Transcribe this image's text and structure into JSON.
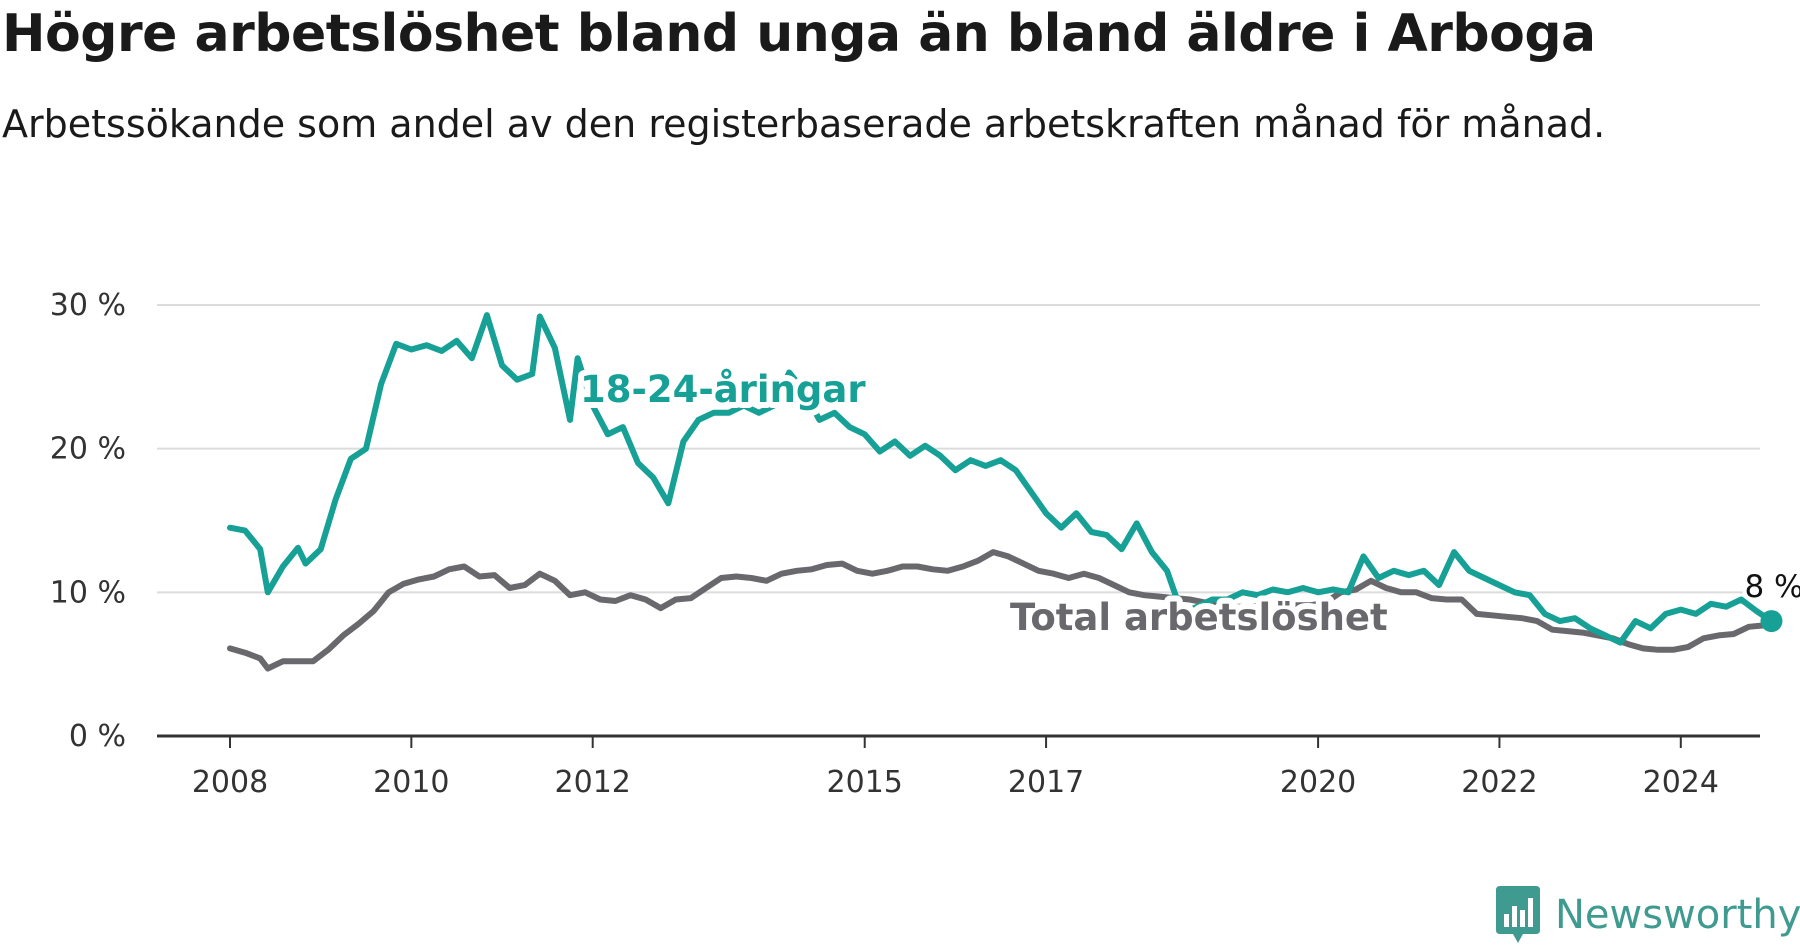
{
  "title": "Högre arbetslöshet bland unga än bland äldre i Arboga",
  "subtitle": "Arbetssökande som andel av den registerbaserade arbetskraften månad för månad.",
  "brand": {
    "name": "Newsworthy",
    "icon": "newsworthy-logo-icon",
    "color": "#3f9a8f"
  },
  "chart_data": {
    "type": "line",
    "title": "Högre arbetslöshet bland unga än bland äldre i Arboga",
    "subtitle": "Arbetssökande som andel av den registerbaserade arbetskraften månad för månad.",
    "xlabel": "",
    "ylabel": "",
    "x_ticks": [
      "2008",
      "2010",
      "2012",
      "2015",
      "2017",
      "2020",
      "2022",
      "2024"
    ],
    "y_ticks": [
      "0 %",
      "10 %",
      "20 %",
      "30 %"
    ],
    "ylim": [
      0,
      30
    ],
    "grid": true,
    "end_label": "8 %",
    "series": [
      {
        "name": "18-24-åringar",
        "color": "#16a096",
        "points": [
          [
            "2008-01",
            14.5
          ],
          [
            "2008-03",
            14.3
          ],
          [
            "2008-05",
            13.0
          ],
          [
            "2008-06",
            10.0
          ],
          [
            "2008-08",
            11.8
          ],
          [
            "2008-10",
            13.1
          ],
          [
            "2008-11",
            12.0
          ],
          [
            "2009-01",
            13.0
          ],
          [
            "2009-03",
            16.5
          ],
          [
            "2009-05",
            19.3
          ],
          [
            "2009-07",
            20.0
          ],
          [
            "2009-09",
            24.5
          ],
          [
            "2009-11",
            27.3
          ],
          [
            "2010-01",
            26.9
          ],
          [
            "2010-03",
            27.2
          ],
          [
            "2010-05",
            26.8
          ],
          [
            "2010-07",
            27.5
          ],
          [
            "2010-09",
            26.3
          ],
          [
            "2010-11",
            29.3
          ],
          [
            "2011-01",
            25.8
          ],
          [
            "2011-03",
            24.8
          ],
          [
            "2011-05",
            25.2
          ],
          [
            "2011-06",
            29.2
          ],
          [
            "2011-08",
            27.0
          ],
          [
            "2011-10",
            22.0
          ],
          [
            "2011-11",
            26.3
          ],
          [
            "2012-01",
            23.0
          ],
          [
            "2012-03",
            21.0
          ],
          [
            "2012-05",
            21.5
          ],
          [
            "2012-07",
            19.0
          ],
          [
            "2012-09",
            18.0
          ],
          [
            "2012-11",
            16.2
          ],
          [
            "2013-01",
            20.5
          ],
          [
            "2013-03",
            22.0
          ],
          [
            "2013-05",
            22.5
          ],
          [
            "2013-07",
            22.5
          ],
          [
            "2013-09",
            23.0
          ],
          [
            "2013-11",
            22.5
          ],
          [
            "2014-01",
            23.0
          ],
          [
            "2014-03",
            25.3
          ],
          [
            "2014-05",
            24.0
          ],
          [
            "2014-07",
            22.0
          ],
          [
            "2014-09",
            22.5
          ],
          [
            "2014-11",
            21.5
          ],
          [
            "2015-01",
            21.0
          ],
          [
            "2015-03",
            19.8
          ],
          [
            "2015-05",
            20.5
          ],
          [
            "2015-07",
            19.5
          ],
          [
            "2015-09",
            20.2
          ],
          [
            "2015-11",
            19.5
          ],
          [
            "2016-01",
            18.5
          ],
          [
            "2016-03",
            19.2
          ],
          [
            "2016-05",
            18.8
          ],
          [
            "2016-07",
            19.2
          ],
          [
            "2016-09",
            18.5
          ],
          [
            "2016-11",
            17.0
          ],
          [
            "2017-01",
            15.5
          ],
          [
            "2017-03",
            14.5
          ],
          [
            "2017-05",
            15.5
          ],
          [
            "2017-07",
            14.2
          ],
          [
            "2017-09",
            14.0
          ],
          [
            "2017-11",
            13.0
          ],
          [
            "2018-01",
            14.8
          ],
          [
            "2018-03",
            12.8
          ],
          [
            "2018-05",
            11.5
          ],
          [
            "2018-07",
            8.5
          ],
          [
            "2018-09",
            9.0
          ],
          [
            "2018-11",
            9.5
          ],
          [
            "2019-01",
            9.5
          ],
          [
            "2019-03",
            10.0
          ],
          [
            "2019-05",
            9.8
          ],
          [
            "2019-07",
            10.2
          ],
          [
            "2019-09",
            10.0
          ],
          [
            "2019-11",
            10.3
          ],
          [
            "2020-01",
            10.0
          ],
          [
            "2020-03",
            10.2
          ],
          [
            "2020-05",
            10.0
          ],
          [
            "2020-07",
            12.5
          ],
          [
            "2020-09",
            11.0
          ],
          [
            "2020-11",
            11.5
          ],
          [
            "2021-01",
            11.2
          ],
          [
            "2021-03",
            11.5
          ],
          [
            "2021-05",
            10.5
          ],
          [
            "2021-07",
            12.8
          ],
          [
            "2021-09",
            11.5
          ],
          [
            "2021-11",
            11.0
          ],
          [
            "2022-01",
            10.5
          ],
          [
            "2022-03",
            10.0
          ],
          [
            "2022-05",
            9.8
          ],
          [
            "2022-07",
            8.5
          ],
          [
            "2022-09",
            8.0
          ],
          [
            "2022-11",
            8.2
          ],
          [
            "2023-01",
            7.5
          ],
          [
            "2023-03",
            7.0
          ],
          [
            "2023-05",
            6.5
          ],
          [
            "2023-07",
            8.0
          ],
          [
            "2023-09",
            7.5
          ],
          [
            "2023-11",
            8.5
          ],
          [
            "2024-01",
            8.8
          ],
          [
            "2024-03",
            8.5
          ],
          [
            "2024-05",
            9.2
          ],
          [
            "2024-07",
            9.0
          ],
          [
            "2024-09",
            9.5
          ],
          [
            "2024-11",
            8.7
          ],
          [
            "2025-01",
            8.0
          ]
        ]
      },
      {
        "name": "Total arbetslöshet",
        "color": "#69686d",
        "points": [
          [
            "2008-01",
            6.1
          ],
          [
            "2008-03",
            5.8
          ],
          [
            "2008-05",
            5.4
          ],
          [
            "2008-06",
            4.7
          ],
          [
            "2008-08",
            5.2
          ],
          [
            "2008-10",
            5.2
          ],
          [
            "2008-12",
            5.2
          ],
          [
            "2009-02",
            6.0
          ],
          [
            "2009-04",
            7.0
          ],
          [
            "2009-06",
            7.8
          ],
          [
            "2009-08",
            8.7
          ],
          [
            "2009-10",
            10.0
          ],
          [
            "2009-12",
            10.6
          ],
          [
            "2010-02",
            10.9
          ],
          [
            "2010-04",
            11.1
          ],
          [
            "2010-06",
            11.6
          ],
          [
            "2010-08",
            11.8
          ],
          [
            "2010-10",
            11.1
          ],
          [
            "2010-12",
            11.2
          ],
          [
            "2011-02",
            10.3
          ],
          [
            "2011-04",
            10.5
          ],
          [
            "2011-06",
            11.3
          ],
          [
            "2011-08",
            10.8
          ],
          [
            "2011-10",
            9.8
          ],
          [
            "2011-12",
            10.0
          ],
          [
            "2012-02",
            9.5
          ],
          [
            "2012-04",
            9.4
          ],
          [
            "2012-06",
            9.8
          ],
          [
            "2012-08",
            9.5
          ],
          [
            "2012-10",
            8.9
          ],
          [
            "2012-12",
            9.5
          ],
          [
            "2013-02",
            9.6
          ],
          [
            "2013-04",
            10.3
          ],
          [
            "2013-06",
            11.0
          ],
          [
            "2013-08",
            11.1
          ],
          [
            "2013-10",
            11.0
          ],
          [
            "2013-12",
            10.8
          ],
          [
            "2014-02",
            11.3
          ],
          [
            "2014-04",
            11.5
          ],
          [
            "2014-06",
            11.6
          ],
          [
            "2014-08",
            11.9
          ],
          [
            "2014-10",
            12.0
          ],
          [
            "2014-12",
            11.5
          ],
          [
            "2015-02",
            11.3
          ],
          [
            "2015-04",
            11.5
          ],
          [
            "2015-06",
            11.8
          ],
          [
            "2015-08",
            11.8
          ],
          [
            "2015-10",
            11.6
          ],
          [
            "2015-12",
            11.5
          ],
          [
            "2016-02",
            11.8
          ],
          [
            "2016-04",
            12.2
          ],
          [
            "2016-06",
            12.8
          ],
          [
            "2016-08",
            12.5
          ],
          [
            "2016-10",
            12.0
          ],
          [
            "2016-12",
            11.5
          ],
          [
            "2017-02",
            11.3
          ],
          [
            "2017-04",
            11.0
          ],
          [
            "2017-06",
            11.3
          ],
          [
            "2017-08",
            11.0
          ],
          [
            "2017-10",
            10.5
          ],
          [
            "2017-12",
            10.0
          ],
          [
            "2018-02",
            9.8
          ],
          [
            "2018-04",
            9.7
          ],
          [
            "2018-06",
            9.6
          ],
          [
            "2018-08",
            9.5
          ],
          [
            "2018-10",
            9.3
          ],
          [
            "2018-12",
            9.2
          ],
          [
            "2019-02",
            9.0
          ],
          [
            "2019-04",
            9.0
          ],
          [
            "2019-06",
            9.1
          ],
          [
            "2019-08",
            9.0
          ],
          [
            "2019-10",
            9.1
          ],
          [
            "2019-12",
            9.1
          ],
          [
            "2020-02",
            9.3
          ],
          [
            "2020-04",
            10.0
          ],
          [
            "2020-06",
            10.2
          ],
          [
            "2020-08",
            10.8
          ],
          [
            "2020-10",
            10.3
          ],
          [
            "2020-12",
            10.0
          ],
          [
            "2021-02",
            10.0
          ],
          [
            "2021-04",
            9.6
          ],
          [
            "2021-06",
            9.5
          ],
          [
            "2021-08",
            9.5
          ],
          [
            "2021-10",
            8.5
          ],
          [
            "2021-12",
            8.4
          ],
          [
            "2022-02",
            8.3
          ],
          [
            "2022-04",
            8.2
          ],
          [
            "2022-06",
            8.0
          ],
          [
            "2022-08",
            7.4
          ],
          [
            "2022-10",
            7.3
          ],
          [
            "2022-12",
            7.2
          ],
          [
            "2023-02",
            7.0
          ],
          [
            "2023-04",
            6.8
          ],
          [
            "2023-06",
            6.4
          ],
          [
            "2023-08",
            6.1
          ],
          [
            "2023-10",
            6.0
          ],
          [
            "2023-12",
            6.0
          ],
          [
            "2024-02",
            6.2
          ],
          [
            "2024-04",
            6.8
          ],
          [
            "2024-06",
            7.0
          ],
          [
            "2024-08",
            7.1
          ],
          [
            "2024-10",
            7.6
          ],
          [
            "2024-12",
            7.7
          ]
        ]
      }
    ]
  }
}
